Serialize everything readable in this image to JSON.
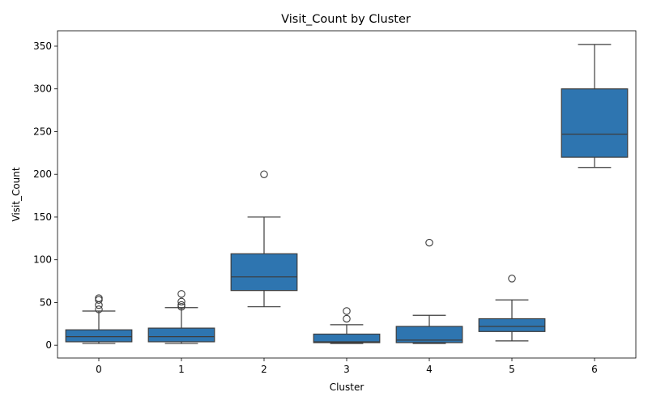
{
  "chart_data": {
    "type": "box",
    "title": "Visit_Count by Cluster",
    "xlabel": "Cluster",
    "ylabel": "Visit_Count",
    "ylim": [
      -15,
      368
    ],
    "yticks": [
      0,
      50,
      100,
      150,
      200,
      250,
      300,
      350
    ],
    "grid": false,
    "legend": "none",
    "categories": [
      "0",
      "1",
      "2",
      "3",
      "4",
      "5",
      "6"
    ],
    "box_color": "#2e75b0",
    "line_color": "#3d3d3d",
    "boxes": [
      {
        "category": "0",
        "whisker_low": 2,
        "q1": 4,
        "median": 10,
        "q3": 18,
        "whisker_high": 40,
        "outliers": [
          42,
          47,
          53,
          55
        ]
      },
      {
        "category": "1",
        "whisker_low": 2,
        "q1": 4,
        "median": 10,
        "q3": 20,
        "whisker_high": 44,
        "outliers": [
          45,
          47,
          51,
          60
        ]
      },
      {
        "category": "2",
        "whisker_low": 45,
        "q1": 64,
        "median": 80,
        "q3": 107,
        "whisker_high": 150,
        "outliers": [
          200
        ]
      },
      {
        "category": "3",
        "whisker_low": 2,
        "q1": 3,
        "median": 4,
        "q3": 13,
        "whisker_high": 24,
        "outliers": [
          31,
          40
        ]
      },
      {
        "category": "4",
        "whisker_low": 2,
        "q1": 3,
        "median": 6,
        "q3": 22,
        "whisker_high": 35,
        "outliers": [
          120
        ]
      },
      {
        "category": "5",
        "whisker_low": 5,
        "q1": 16,
        "median": 22,
        "q3": 31,
        "whisker_high": 53,
        "outliers": [
          78
        ]
      },
      {
        "category": "6",
        "whisker_low": 208,
        "q1": 220,
        "median": 247,
        "q3": 300,
        "whisker_high": 352,
        "outliers": []
      }
    ]
  }
}
